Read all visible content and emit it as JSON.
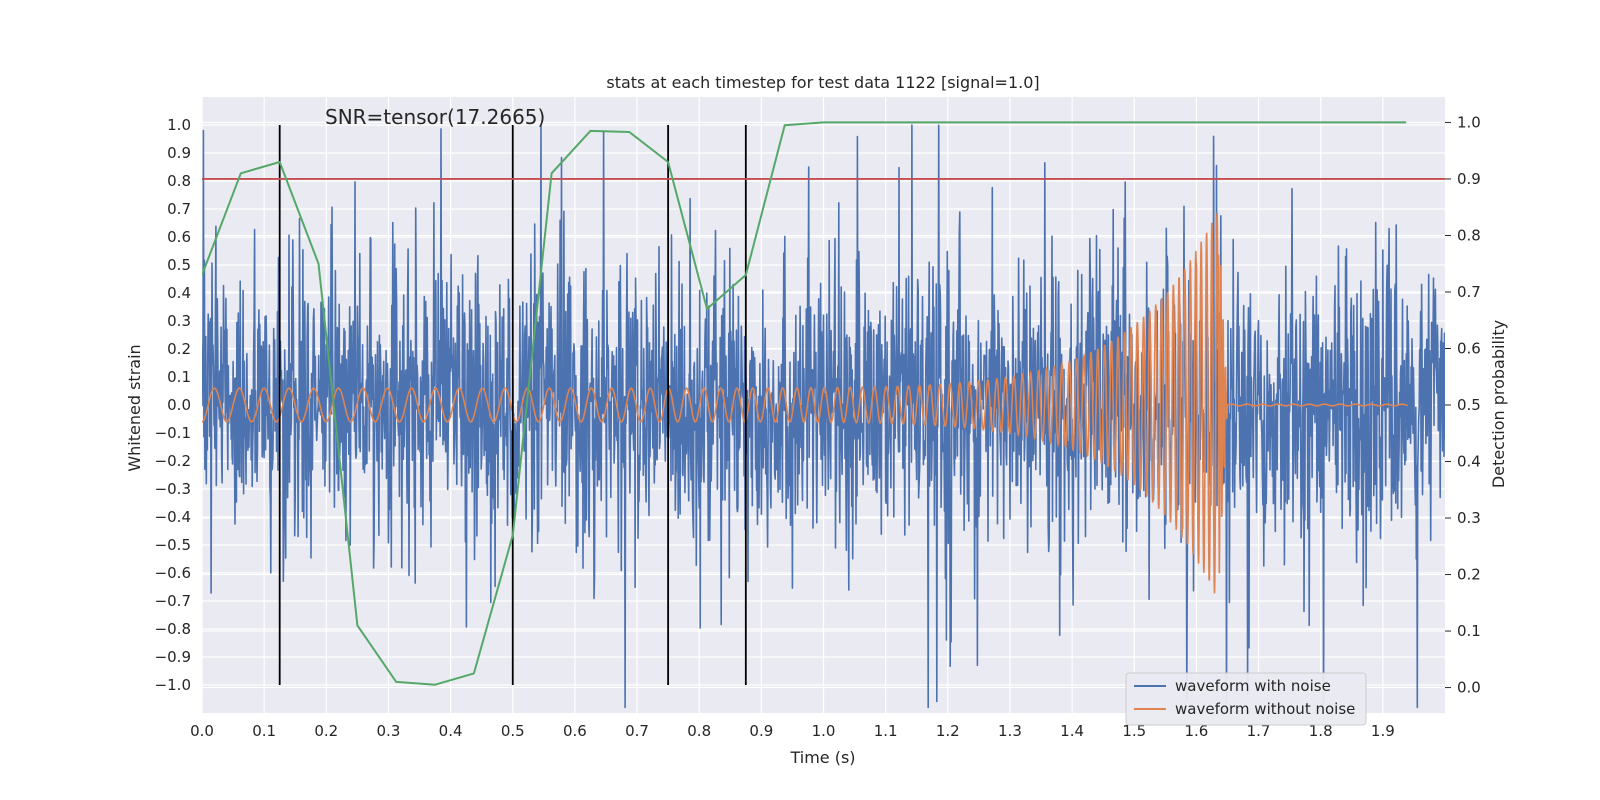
{
  "chart_data": {
    "type": "line",
    "title": "stats at each timestep for test data 1122 [signal=1.0]",
    "annotation": "SNR=tensor(17.2665)",
    "xlabel": "Time (s)",
    "ylabel": "Whitened strain",
    "y2label": "Detection probability",
    "xlim": [
      0.0,
      2.0
    ],
    "ylim": [
      -1.1,
      1.1
    ],
    "y2lim": [
      -0.045,
      1.045
    ],
    "x_ticks": [
      "0.0",
      "0.1",
      "0.2",
      "0.3",
      "0.4",
      "0.5",
      "0.6",
      "0.7",
      "0.8",
      "0.9",
      "1.0",
      "1.1",
      "1.2",
      "1.3",
      "1.4",
      "1.5",
      "1.6",
      "1.7",
      "1.8",
      "1.9"
    ],
    "y_ticks": [
      "1.0",
      "0.9",
      "0.8",
      "0.7",
      "0.6",
      "0.5",
      "0.4",
      "0.3",
      "0.2",
      "0.1",
      "0.0",
      "−0.1",
      "−0.2",
      "−0.3",
      "−0.4",
      "−0.5",
      "−0.6",
      "−0.7",
      "−0.8",
      "−0.9",
      "−1.0"
    ],
    "y2_ticks": [
      "1.0",
      "0.9",
      "0.8",
      "0.7",
      "0.6",
      "0.5",
      "0.4",
      "0.3",
      "0.2",
      "0.1",
      "0.0"
    ],
    "threshold_line": {
      "axis": "right",
      "value": 0.9,
      "color": "#c44e52"
    },
    "vertical_lines": {
      "x": [
        0.125,
        0.5,
        0.75,
        0.875
      ],
      "ymin": -1.0,
      "ymax": 1.0,
      "color": "#000000"
    },
    "series": [
      {
        "name": "waveform with noise",
        "axis": "left",
        "color": "#4c72b0",
        "kind": "noisy",
        "duration": 2.0,
        "amplitude_range": [
          -1.0,
          1.0
        ]
      },
      {
        "name": "waveform without noise",
        "axis": "left",
        "color": "#dd8452",
        "kind": "chirp",
        "start_freq_hz": 25,
        "end_freq_hz": 120,
        "merger_time": 1.635,
        "ringdown_end": 1.65,
        "start_amplitude": 0.06,
        "peak_amplitude": 0.7
      },
      {
        "name": "detection probability",
        "axis": "right",
        "color": "#55a868",
        "x": [
          0.0,
          0.0625,
          0.125,
          0.1875,
          0.25,
          0.3125,
          0.375,
          0.4375,
          0.5,
          0.5625,
          0.625,
          0.6875,
          0.75,
          0.8125,
          0.875,
          0.9375,
          1.0,
          1.0625,
          1.125,
          1.1875,
          1.25,
          1.3125,
          1.375,
          1.4375,
          1.5,
          1.5625,
          1.625,
          1.6875,
          1.75,
          1.8125,
          1.875,
          1.9375
        ],
        "values": [
          0.73,
          0.91,
          0.93,
          0.75,
          0.11,
          0.01,
          0.005,
          0.025,
          0.27,
          0.91,
          0.985,
          0.983,
          0.93,
          0.67,
          0.73,
          0.995,
          1.0,
          1.0,
          1.0,
          1.0,
          1.0,
          1.0,
          1.0,
          1.0,
          1.0,
          1.0,
          1.0,
          1.0,
          1.0,
          1.0,
          1.0,
          1.0
        ]
      }
    ],
    "legend": {
      "placement": "lower-right",
      "entries": [
        "waveform with noise",
        "waveform without noise"
      ]
    }
  }
}
